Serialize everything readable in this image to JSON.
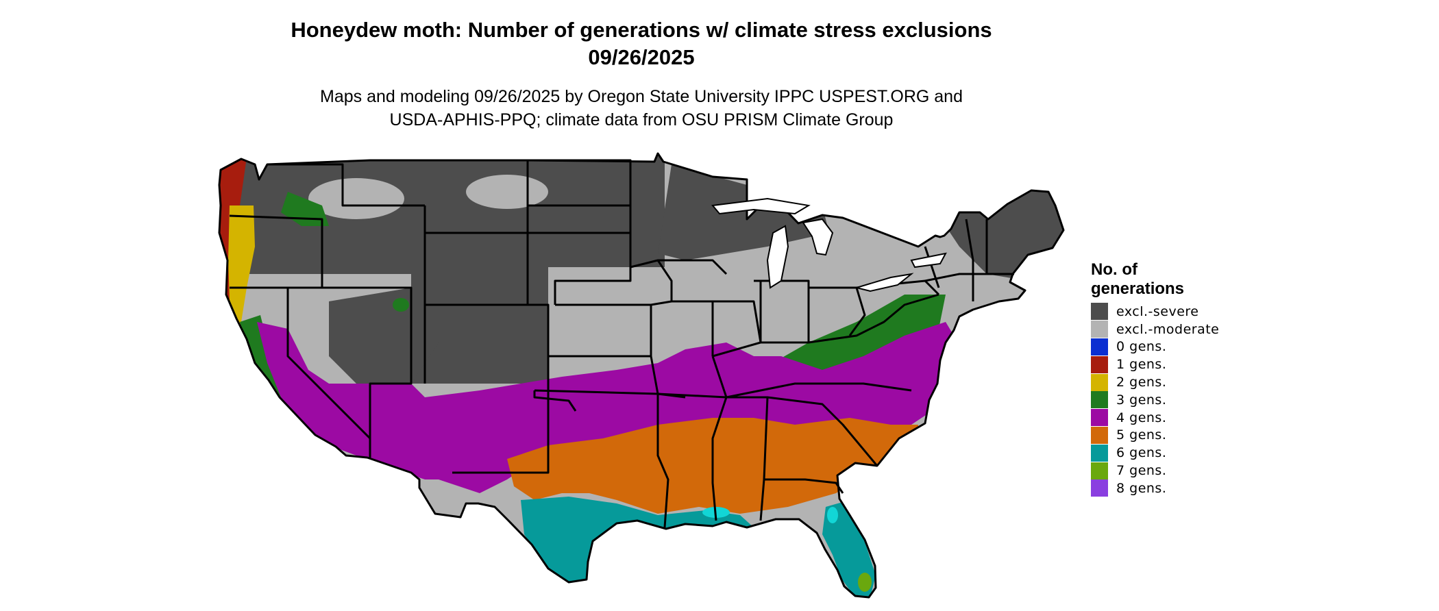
{
  "title": {
    "line1": "Honeydew moth: Number of generations w/ climate stress exclusions",
    "line2": "09/26/2025"
  },
  "subtitle": {
    "line1": "Maps and modeling 09/26/2025 by Oregon State University IPPC USPEST.ORG and",
    "line2": "USDA-APHIS-PPQ; climate data from OSU PRISM Climate Group"
  },
  "legend": {
    "title_line1": "No. of",
    "title_line2": "generations",
    "items": [
      {
        "label": "excl.-severe",
        "color": "#4d4d4d"
      },
      {
        "label": "excl.-moderate",
        "color": "#b3b3b3"
      },
      {
        "label": "0 gens.",
        "color": "#0b2fd1"
      },
      {
        "label": "1 gens.",
        "color": "#a71d0e"
      },
      {
        "label": "2 gens.",
        "color": "#d4b400"
      },
      {
        "label": "3 gens.",
        "color": "#1f7a1f"
      },
      {
        "label": "4 gens.",
        "color": "#9c0aa3"
      },
      {
        "label": "5 gens.",
        "color": "#d2690a"
      },
      {
        "label": "6 gens.",
        "color": "#069a9a"
      },
      {
        "label": "7 gens.",
        "color": "#6aa80e"
      },
      {
        "label": "8 gens.",
        "color": "#8a3fe0"
      }
    ]
  }
}
